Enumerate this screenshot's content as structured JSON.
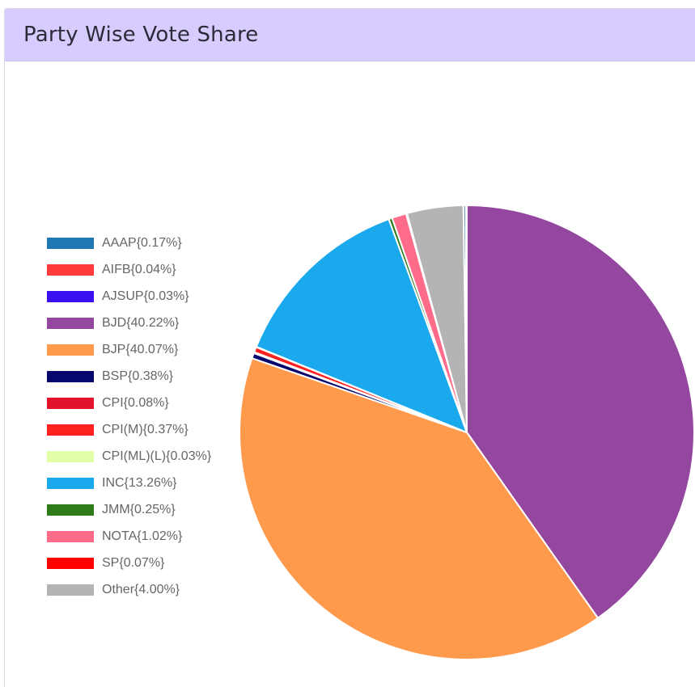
{
  "header": {
    "title": "Party Wise Vote Share"
  },
  "chart_data": {
    "type": "pie",
    "legend_position": "left",
    "slices": [
      {
        "label": "AAAP{0.17%}",
        "party": "AAAP",
        "value": 0.17,
        "color": "#1f77b4"
      },
      {
        "label": "AIFB{0.04%}",
        "party": "AIFB",
        "value": 0.04,
        "color": "#ff3b3b"
      },
      {
        "label": "AJSUP{0.03%}",
        "party": "AJSUP",
        "value": 0.03,
        "color": "#3a0ff0"
      },
      {
        "label": "BJD{40.22%}",
        "party": "BJD",
        "value": 40.22,
        "color": "#94479f"
      },
      {
        "label": "BJP{40.07%}",
        "party": "BJP",
        "value": 40.07,
        "color": "#ff9a4d"
      },
      {
        "label": "BSP{0.38%}",
        "party": "BSP",
        "value": 0.38,
        "color": "#07076e"
      },
      {
        "label": "CPI{0.08%}",
        "party": "CPI",
        "value": 0.08,
        "color": "#e3132b"
      },
      {
        "label": "CPI(M){0.37%}",
        "party": "CPI(M)",
        "value": 0.37,
        "color": "#ff2020"
      },
      {
        "label": "CPI(ML)(L){0.03%}",
        "party": "CPI(ML)(L)",
        "value": 0.03,
        "color": "#e2ffa8"
      },
      {
        "label": "INC{13.26%}",
        "party": "INC",
        "value": 13.26,
        "color": "#1aa9ec"
      },
      {
        "label": "JMM{0.25%}",
        "party": "JMM",
        "value": 0.25,
        "color": "#2e7b1a"
      },
      {
        "label": "NOTA{1.02%}",
        "party": "NOTA",
        "value": 1.02,
        "color": "#ff6c8a"
      },
      {
        "label": "SP{0.07%}",
        "party": "SP",
        "value": 0.07,
        "color": "#ff0000"
      },
      {
        "label": "Other{4.00%}",
        "party": "Other",
        "value": 4.0,
        "color": "#b4b4b4"
      }
    ]
  }
}
